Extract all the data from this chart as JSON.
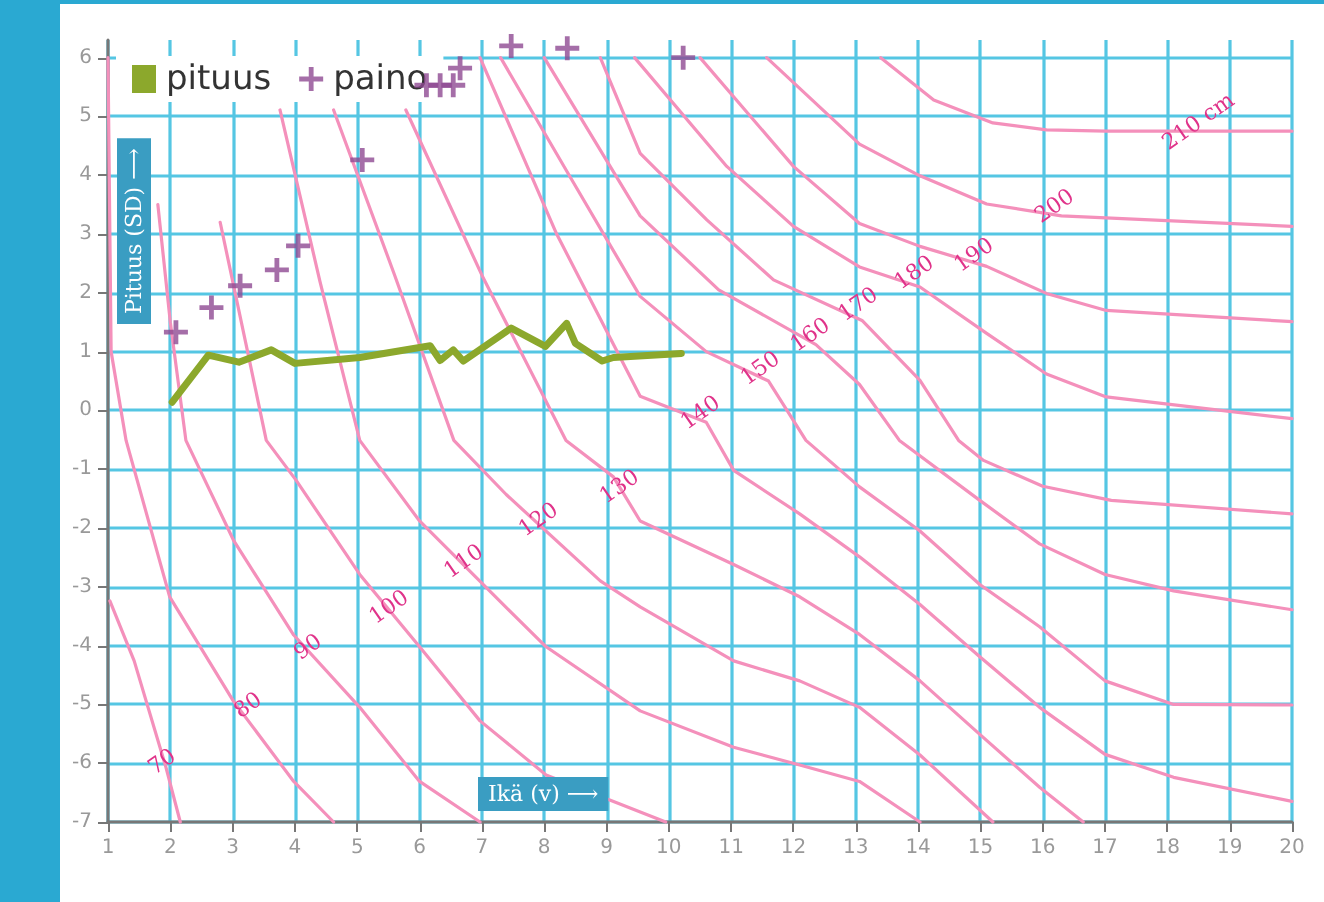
{
  "chart_data": {
    "type": "line",
    "xlabel": "Ikä (v) ⟶",
    "ylabel": "Pituus (SD) ⟶",
    "xlim": [
      1,
      20
    ],
    "xticks": [
      1,
      2,
      3,
      4,
      5,
      6,
      7,
      8,
      9,
      10,
      11,
      12,
      13,
      14,
      15,
      16,
      17,
      18,
      19,
      20
    ],
    "ylim": [
      -7,
      6.3
    ],
    "yticks": [
      -7,
      -6,
      -5,
      -4,
      -3,
      -2,
      -1,
      0,
      1,
      2,
      3,
      4,
      5,
      6
    ],
    "grid": true,
    "legend": "top left",
    "annotations": [
      {
        "text": "70",
        "x": 1.96,
        "y": -6.14
      },
      {
        "text": "80",
        "x": 3.34,
        "y": -5.18
      },
      {
        "text": "90",
        "x": 4.3,
        "y": -4.19
      },
      {
        "text": "100",
        "x": 5.6,
        "y": -3.51
      },
      {
        "text": "110",
        "x": 6.8,
        "y": -2.73
      },
      {
        "text": "120",
        "x": 8.0,
        "y": -2.02
      },
      {
        "text": "130",
        "x": 9.3,
        "y": -1.46
      },
      {
        "text": "140",
        "x": 10.6,
        "y": -0.2
      },
      {
        "text": "150",
        "x": 11.56,
        "y": 0.55
      },
      {
        "text": "160",
        "x": 12.36,
        "y": 1.12
      },
      {
        "text": "170",
        "x": 13.13,
        "y": 1.64
      },
      {
        "text": "180",
        "x": 14.03,
        "y": 2.18
      },
      {
        "text": "190",
        "x": 14.99,
        "y": 2.48
      },
      {
        "text": "200",
        "x": 16.28,
        "y": 3.31
      },
      {
        "text": "210 cm",
        "x": 18.59,
        "y": 4.75
      }
    ],
    "series": [
      {
        "color": "#f490bb",
        "x": [
          1.03,
          1.42,
          1.93,
          2.16
        ],
        "values": [
          -3.24,
          -4.26,
          -6.07,
          -7
        ]
      },
      {
        "color": "#f490bb",
        "x": [
          1.0,
          1.05,
          1.29,
          1.99,
          3.01,
          3.98,
          4.62
        ],
        "values": [
          6,
          1.0,
          -0.51,
          -3.17,
          -4.94,
          -6.31,
          -7
        ]
      },
      {
        "color": "#f490bb",
        "x": [
          1.8,
          2.0,
          2.25,
          3.02,
          3.98,
          5.04,
          6.0,
          6.97
        ],
        "values": [
          3.5,
          1.5,
          -0.51,
          -2.22,
          -3.82,
          -5.05,
          -6.31,
          -7
        ]
      },
      {
        "color": "#f490bb",
        "x": [
          2.8,
          3.2,
          3.54,
          4.02,
          5.04,
          6.0,
          6.97,
          8.03,
          9.95
        ],
        "values": [
          3.2,
          1.2,
          -0.51,
          -1.19,
          -2.79,
          -4.02,
          -5.28,
          -6.2,
          -7
        ]
      },
      {
        "color": "#f490bb",
        "x": [
          3.76,
          4.4,
          5.04,
          6.0,
          7.18,
          8.03,
          9.54,
          11.04,
          12.1,
          13.06,
          14.03
        ],
        "values": [
          5.11,
          2.2,
          -0.51,
          -1.88,
          -3.13,
          -4.02,
          -5.11,
          -5.73,
          -6.03,
          -6.31,
          -7
        ]
      },
      {
        "color": "#f490bb",
        "x": [
          4.62,
          5.6,
          6.55,
          7.39,
          8.9,
          9.54,
          11.04,
          12.1,
          13.06,
          14.03,
          15.2
        ],
        "values": [
          5.11,
          2.3,
          -0.51,
          -1.43,
          -2.9,
          -3.34,
          -4.26,
          -4.6,
          -5.05,
          -5.86,
          -7
        ]
      },
      {
        "color": "#f490bb",
        "x": [
          5.78,
          7.0,
          8.35,
          9.11,
          9.54,
          11.04,
          12.1,
          13.06,
          14.03,
          14.99,
          15.95,
          16.65
        ],
        "values": [
          5.11,
          2.3,
          -0.51,
          -1.13,
          -1.88,
          -2.62,
          -3.17,
          -3.81,
          -4.6,
          -5.51,
          -6.41,
          -7
        ]
      },
      {
        "color": "#f490bb",
        "x": [
          6.97,
          8.2,
          9.54,
          10.6,
          11.04,
          12.1,
          13.06,
          14.03,
          14.99,
          15.95,
          17.0,
          18.1,
          20
        ],
        "values": [
          6,
          3.0,
          0.24,
          -0.2,
          -1.02,
          -1.76,
          -2.49,
          -3.3,
          -4.19,
          -5.05,
          -5.85,
          -6.24,
          -6.65
        ]
      },
      {
        "color": "#f490bb",
        "x": [
          7.3,
          8.4,
          9.54,
          10.6,
          11.6,
          12.2,
          13.06,
          14.03,
          14.99,
          15.95,
          17.0,
          18.1,
          20
        ],
        "values": [
          6,
          4.0,
          1.94,
          1.0,
          0.5,
          -0.51,
          -1.3,
          -2.05,
          -2.96,
          -3.68,
          -4.6,
          -5.0,
          -5.01
        ]
      },
      {
        "color": "#f490bb",
        "x": [
          8.0,
          9.54,
          10.8,
          12.36,
          13.06,
          13.7,
          14.99,
          15.95,
          17.0,
          18.1,
          20
        ],
        "values": [
          6,
          3.31,
          2.05,
          1.12,
          0.44,
          -0.51,
          -1.53,
          -2.27,
          -2.79,
          -3.07,
          -3.39
        ]
      },
      {
        "color": "#f490bb",
        "x": [
          8.9,
          9.54,
          10.61,
          11.68,
          13.1,
          14.03,
          14.65,
          15.05,
          16.0,
          17.1,
          20
        ],
        "values": [
          6,
          4.37,
          3.24,
          2.22,
          1.53,
          0.51,
          -0.51,
          -0.85,
          -1.29,
          -1.53,
          -1.76
        ]
      },
      {
        "color": "#f490bb",
        "x": [
          9.45,
          10.93,
          12.0,
          13.06,
          14.03,
          15.1,
          16.06,
          17.02,
          20
        ],
        "values": [
          6,
          4.15,
          3.13,
          2.44,
          2.1,
          1.31,
          0.62,
          0.23,
          -0.14
        ]
      },
      {
        "color": "#f490bb",
        "x": [
          10.5,
          12.0,
          13.06,
          14.03,
          15.1,
          16.06,
          17.02,
          20
        ],
        "values": [
          6,
          4.15,
          3.18,
          2.79,
          2.45,
          1.99,
          1.7,
          1.51
        ]
      },
      {
        "color": "#f490bb",
        "x": [
          11.57,
          13.06,
          14.03,
          15.1,
          16.3,
          20
        ],
        "values": [
          6,
          4.53,
          3.99,
          3.51,
          3.31,
          3.13
        ]
      },
      {
        "color": "#f490bb",
        "x": [
          13.4,
          14.25,
          15.2,
          16.06,
          17.02,
          20
        ],
        "values": [
          6,
          5.28,
          4.89,
          4.77,
          4.75,
          4.75
        ]
      },
      {
        "name": "pituus",
        "color": "#8ca82c",
        "marker": "none",
        "x": [
          2.03,
          2.61,
          3.1,
          3.62,
          4.0,
          5.04,
          6.17,
          6.33,
          6.54,
          6.7,
          7.47,
          8.02,
          8.36,
          8.5,
          8.93,
          9.11,
          10.2
        ],
        "values": [
          0.14,
          0.94,
          0.82,
          1.03,
          0.8,
          0.9,
          1.1,
          0.85,
          1.03,
          0.84,
          1.4,
          1.09,
          1.48,
          1.14,
          0.84,
          0.9,
          0.97
        ]
      },
      {
        "name": "paino",
        "type": "scatter",
        "color": "#8e4a92",
        "marker": "cross",
        "x": [
          2.09,
          2.66,
          3.12,
          3.71,
          4.05,
          5.08,
          6.11,
          6.33,
          6.54,
          6.65,
          7.47,
          8.37,
          10.23
        ],
        "values": [
          1.33,
          1.75,
          2.12,
          2.39,
          2.8,
          4.26,
          5.53,
          5.53,
          5.53,
          5.82,
          6.2,
          6.16,
          6.0
        ]
      }
    ]
  }
}
